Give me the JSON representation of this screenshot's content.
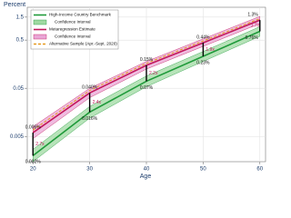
{
  "chart_data": {
    "type": "line",
    "y_label": "Percent",
    "x_label": "Age",
    "log_y": true,
    "x": [
      20,
      30,
      40,
      50,
      60
    ],
    "xlim": [
      19,
      61
    ],
    "xticks": [
      20,
      30,
      40,
      50,
      60
    ],
    "ylim": [
      0.0015,
      2.4
    ],
    "yticks": [
      0.005,
      0.05,
      0.5,
      1.5
    ],
    "grid": true,
    "legend_position": "top-left",
    "series": [
      {
        "name": "High-Income Country Benchmark",
        "color": "#1f9a3a",
        "values": [
          0.002,
          0.016,
          0.07,
          0.23,
          0.76
        ],
        "value_labels": [
          "0.002%",
          "0.016%",
          "0.07%",
          "0.23%",
          "0.76%"
        ],
        "ci": {
          "name": "Confidence Interval",
          "color": "#9fd9a2",
          "lower": [
            0.0015,
            0.012,
            0.054,
            0.18,
            0.6
          ],
          "upper": [
            0.0027,
            0.021,
            0.09,
            0.29,
            0.95
          ]
        }
      },
      {
        "name": "Metaregression Estimate",
        "color": "#c2185b",
        "values": [
          0.006,
          0.04,
          0.15,
          0.44,
          1.3
        ],
        "value_labels": [
          "0.006%",
          "0.040%",
          "0.15%",
          "0.44%",
          "1.3%"
        ],
        "ci": {
          "name": "Confidence Interval",
          "color": "#e9a6d6",
          "lower": [
            0.0045,
            0.032,
            0.125,
            0.37,
            1.1
          ],
          "upper": [
            0.008,
            0.05,
            0.18,
            0.53,
            1.55
          ]
        }
      },
      {
        "name": "Alternative Sample (Apr.-Sept. 2020)",
        "color": "#e69a1f",
        "dashed": true,
        "values": [
          0.0068,
          0.045,
          0.165,
          0.48,
          1.4
        ]
      }
    ],
    "annotations": [
      {
        "x": 20,
        "text": "2.7x"
      },
      {
        "x": 30,
        "text": "2.4x"
      },
      {
        "x": 40,
        "text": "2.2x"
      },
      {
        "x": 50,
        "text": "1.9x"
      },
      {
        "x": 60,
        "text": "1.7x"
      }
    ]
  }
}
